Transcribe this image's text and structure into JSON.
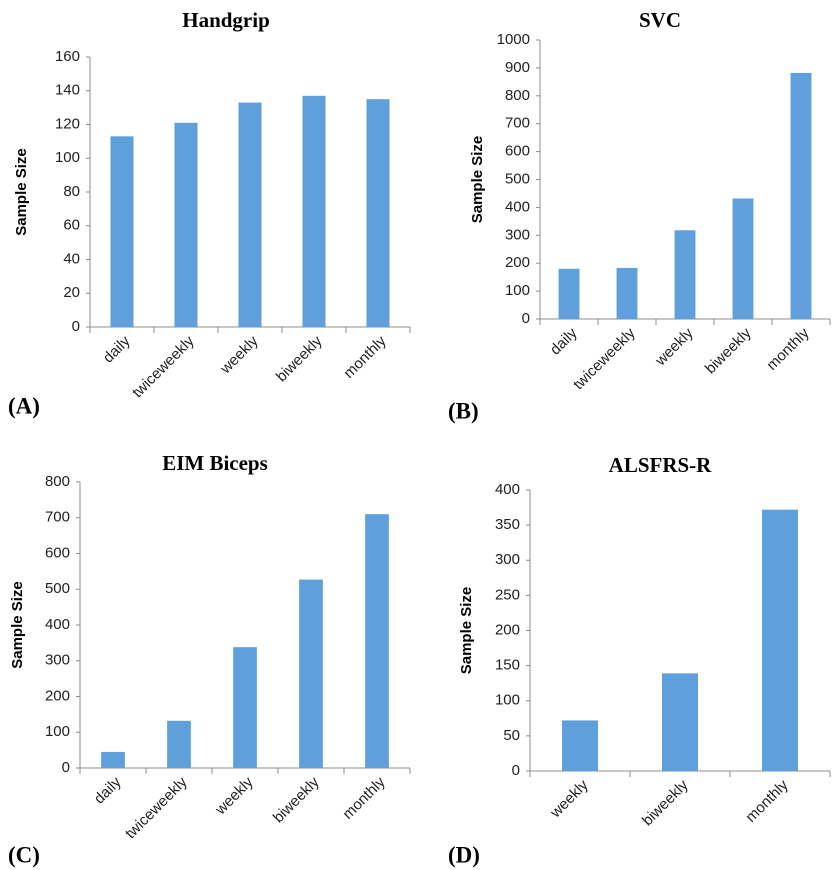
{
  "chart_data": [
    {
      "type": "bar",
      "title": "Handgrip",
      "panel_label": "(A)",
      "y_label": "Sample Size",
      "color": "#5fa0dc",
      "categories": [
        "daily",
        "twiceweekly",
        "weekly",
        "biweekly",
        "monthly"
      ],
      "values": [
        113,
        121,
        133,
        137,
        135
      ],
      "ylim": [
        0,
        160
      ],
      "yticks": [
        0,
        20,
        40,
        60,
        80,
        100,
        120,
        140,
        160
      ]
    },
    {
      "type": "bar",
      "title": "SVC",
      "panel_label": "(B)",
      "y_label": "Sample Size",
      "color": "#5fa0dc",
      "categories": [
        "daily",
        "twiceweekly",
        "weekly",
        "biweekly",
        "monthly"
      ],
      "values": [
        180,
        183,
        318,
        432,
        882
      ],
      "ylim": [
        0,
        1000
      ],
      "yticks": [
        0,
        100,
        200,
        300,
        400,
        500,
        600,
        700,
        800,
        900,
        1000
      ]
    },
    {
      "type": "bar",
      "title": "EIM Biceps",
      "panel_label": "(C)",
      "y_label": "Sample Size",
      "color": "#5fa0dc",
      "categories": [
        "daily",
        "twiceweekly",
        "weekly",
        "biweekly",
        "monthly"
      ],
      "values": [
        45,
        132,
        338,
        527,
        710
      ],
      "ylim": [
        0,
        800
      ],
      "yticks": [
        0,
        100,
        200,
        300,
        400,
        500,
        600,
        700,
        800
      ]
    },
    {
      "type": "bar",
      "title": "ALSFRS-R",
      "panel_label": "(D)",
      "y_label": "Sample Size",
      "color": "#5fa0dc",
      "categories": [
        "weekly",
        "biweekly",
        "monthly"
      ],
      "values": [
        72,
        139,
        372
      ],
      "ylim": [
        0,
        400
      ],
      "yticks": [
        0,
        50,
        100,
        150,
        200,
        250,
        300,
        350,
        400
      ]
    }
  ]
}
